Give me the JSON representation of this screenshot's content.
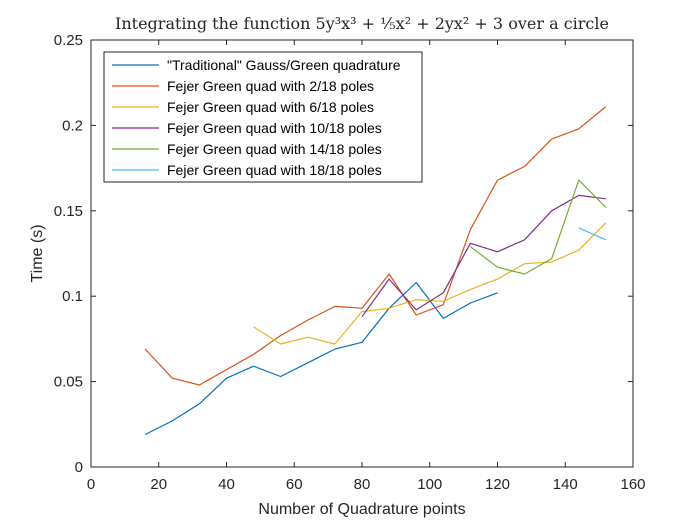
{
  "chart_data": {
    "type": "line",
    "title": "Integrating the function 5y³x³ + ⅕x² + 2yx² + 3 over a circle",
    "xlabel": "Number of Quadrature points",
    "ylabel": "Time (s)",
    "xlim": [
      0,
      160
    ],
    "ylim": [
      0,
      0.25
    ],
    "xticks": [
      0,
      20,
      40,
      60,
      80,
      100,
      120,
      140,
      160
    ],
    "xtick_labels": [
      "0",
      "20",
      "40",
      "60",
      "80",
      "100",
      "120",
      "140",
      "160"
    ],
    "yticks": [
      0,
      0.05,
      0.1,
      0.15,
      0.2,
      0.25
    ],
    "ytick_labels": [
      "0",
      "0.05",
      "0.1",
      "0.15",
      "0.2",
      "0.25"
    ],
    "grid": false,
    "legend_position": "top-left",
    "series": [
      {
        "name": "\"Traditional\" Gauss/Green quadrature",
        "color": "#0072BD",
        "x": [
          16,
          24,
          32,
          40,
          48,
          56,
          64,
          72,
          80,
          88,
          96,
          104,
          112,
          120
        ],
        "y": [
          0.019,
          0.027,
          0.037,
          0.052,
          0.059,
          0.053,
          0.061,
          0.069,
          0.073,
          0.093,
          0.108,
          0.087,
          0.096,
          0.102
        ]
      },
      {
        "name": "Fejer Green quad with 2/18 poles",
        "color": "#D95319",
        "x": [
          16,
          24,
          32,
          40,
          48,
          56,
          64,
          72,
          80,
          88,
          96,
          104,
          112,
          120,
          128,
          136,
          144,
          152
        ],
        "y": [
          0.069,
          0.052,
          0.048,
          0.057,
          0.066,
          0.077,
          0.086,
          0.094,
          0.093,
          0.113,
          0.089,
          0.095,
          0.139,
          0.168,
          0.176,
          0.192,
          0.198,
          0.211
        ]
      },
      {
        "name": "Fejer Green quad with 6/18 poles",
        "color": "#EDB120",
        "x": [
          48,
          56,
          64,
          72,
          80,
          88,
          96,
          104,
          112,
          120,
          128,
          136,
          144,
          152
        ],
        "y": [
          0.082,
          0.072,
          0.076,
          0.072,
          0.091,
          0.093,
          0.098,
          0.097,
          0.104,
          0.11,
          0.119,
          0.12,
          0.127,
          0.143
        ]
      },
      {
        "name": "Fejer Green quad with 10/18 poles",
        "color": "#7E2F8E",
        "x": [
          80,
          88,
          96,
          104,
          112,
          120,
          128,
          136,
          144,
          152
        ],
        "y": [
          0.088,
          0.11,
          0.092,
          0.102,
          0.131,
          0.126,
          0.133,
          0.15,
          0.159,
          0.157
        ]
      },
      {
        "name": "Fejer Green quad with 14/18 poles",
        "color": "#77AC30",
        "x": [
          112,
          120,
          128,
          136,
          144,
          152
        ],
        "y": [
          0.129,
          0.117,
          0.113,
          0.122,
          0.168,
          0.152
        ]
      },
      {
        "name": "Fejer Green quad with 18/18 poles",
        "color": "#4DBEEE",
        "x": [
          144,
          152
        ],
        "y": [
          0.14,
          0.133
        ]
      }
    ]
  }
}
